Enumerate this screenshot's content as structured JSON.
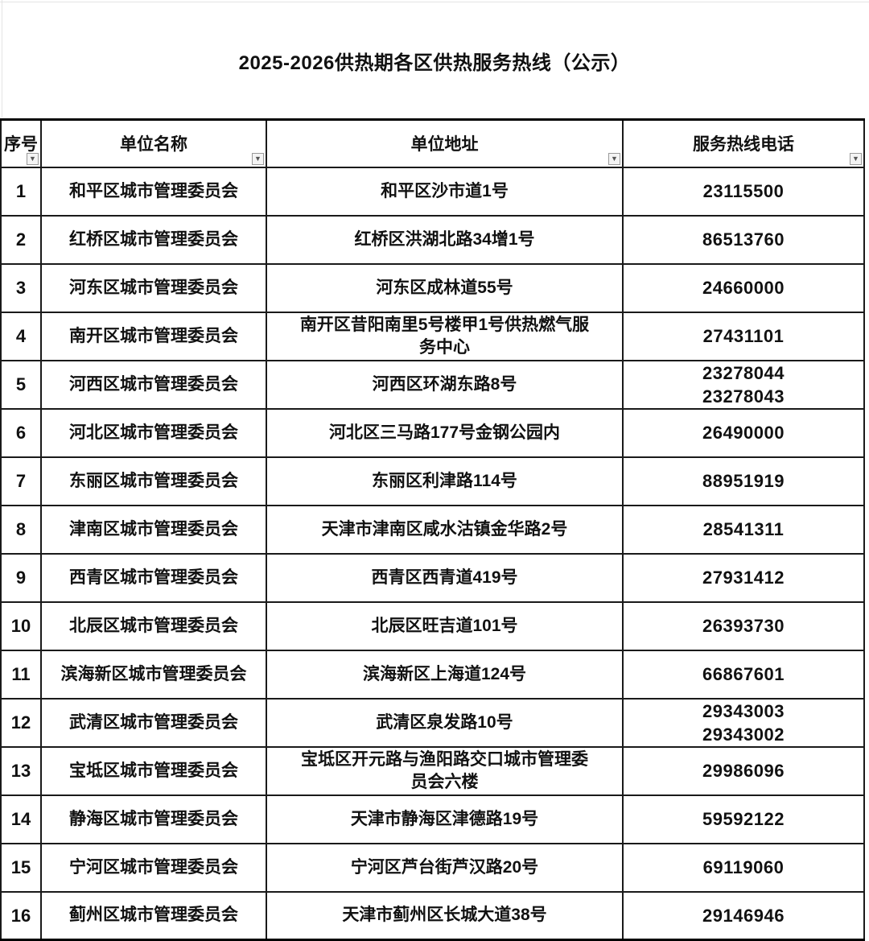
{
  "title": "2025-2026供热期各区供热服务热线（公示）",
  "icons": {
    "filter_arrow": "▼"
  },
  "table": {
    "columns": [
      {
        "label": "序号"
      },
      {
        "label": "单位名称"
      },
      {
        "label": "单位地址"
      },
      {
        "label": "服务热线电话"
      }
    ],
    "rows": [
      {
        "no": "1",
        "name": "和平区城市管理委员会",
        "address": "和平区沙市道1号",
        "phone": "23115500"
      },
      {
        "no": "2",
        "name": "红桥区城市管理委员会",
        "address": "红桥区洪湖北路34增1号",
        "phone": "86513760"
      },
      {
        "no": "3",
        "name": "河东区城市管理委员会",
        "address": "河东区成林道55号",
        "phone": "24660000"
      },
      {
        "no": "4",
        "name": "南开区城市管理委员会",
        "address": "南开区昔阳南里5号楼甲1号供热燃气服\n务中心",
        "phone": "27431101"
      },
      {
        "no": "5",
        "name": "河西区城市管理委员会",
        "address": "河西区环湖东路8号",
        "phone": "23278044\n23278043"
      },
      {
        "no": "6",
        "name": "河北区城市管理委员会",
        "address": "河北区三马路177号金钢公园内",
        "phone": "26490000"
      },
      {
        "no": "7",
        "name": "东丽区城市管理委员会",
        "address": "东丽区利津路114号",
        "phone": "88951919"
      },
      {
        "no": "8",
        "name": "津南区城市管理委员会",
        "address": "天津市津南区咸水沽镇金华路2号",
        "phone": "28541311"
      },
      {
        "no": "9",
        "name": "西青区城市管理委员会",
        "address": "西青区西青道419号",
        "phone": "27931412"
      },
      {
        "no": "10",
        "name": "北辰区城市管理委员会",
        "address": "北辰区旺吉道101号",
        "phone": "26393730"
      },
      {
        "no": "11",
        "name": "滨海新区城市管理委员会",
        "address": "滨海新区上海道124号",
        "phone": "66867601"
      },
      {
        "no": "12",
        "name": "武清区城市管理委员会",
        "address": "武清区泉发路10号",
        "phone": "29343003\n29343002"
      },
      {
        "no": "13",
        "name": "宝坻区城市管理委员会",
        "address": "宝坻区开元路与渔阳路交口城市管理委\n员会六楼",
        "phone": "29986096"
      },
      {
        "no": "14",
        "name": "静海区城市管理委员会",
        "address": "天津市静海区津德路19号",
        "phone": "59592122"
      },
      {
        "no": "15",
        "name": "宁河区城市管理委员会",
        "address": "宁河区芦台街芦汉路20号",
        "phone": "69119060"
      },
      {
        "no": "16",
        "name": "蓟州区城市管理委员会",
        "address": "天津市蓟州区长城大道38号",
        "phone": "29146946"
      }
    ]
  }
}
